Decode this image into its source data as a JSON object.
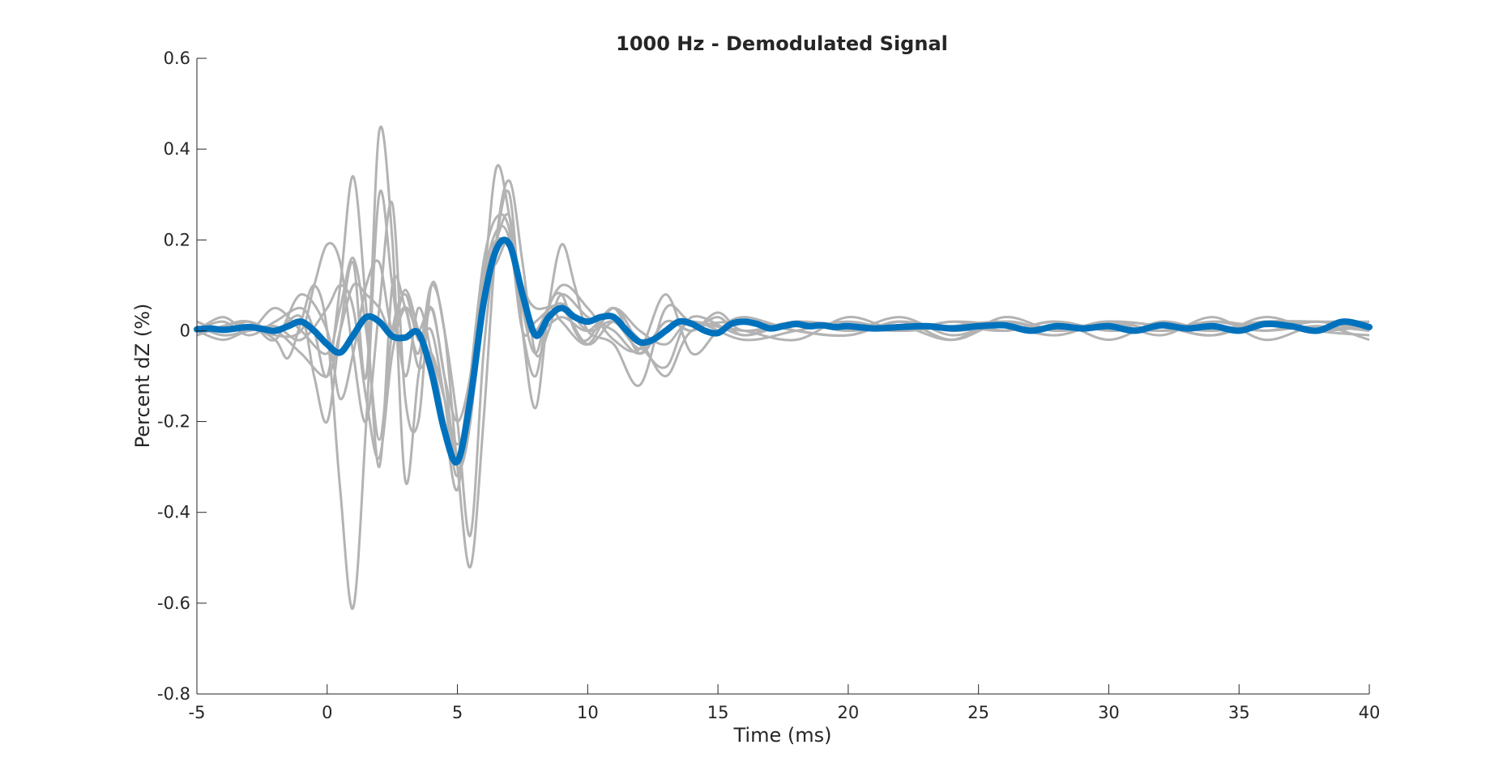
{
  "chart_data": {
    "type": "line",
    "title": "1000 Hz - Demodulated Signal",
    "xlabel": "Time (ms)",
    "ylabel": "Percent dZ (%)",
    "xlim": [
      -5,
      40
    ],
    "ylim": [
      -0.8,
      0.6
    ],
    "xticks": [
      -5,
      0,
      5,
      10,
      15,
      20,
      25,
      30,
      35,
      40
    ],
    "yticks": [
      -0.8,
      -0.6,
      -0.4,
      -0.2,
      0,
      0.2,
      0.4,
      0.6
    ],
    "xtick_labels": [
      "-5",
      "0",
      "5",
      "10",
      "15",
      "20",
      "25",
      "30",
      "35",
      "40"
    ],
    "ytick_labels": [
      "-0.8",
      "-0.6",
      "-0.4",
      "-0.2",
      "0",
      "0.2",
      "0.4",
      "0.6"
    ],
    "grid": false,
    "colors": {
      "mean": "#0072BD",
      "trials": "#b3b3b3",
      "axes": "#262626"
    },
    "mean_series": {
      "x": [
        -5,
        -4.5,
        -4,
        -3.5,
        -3,
        -2.5,
        -2,
        -1.5,
        -1,
        -0.5,
        0,
        0.5,
        1,
        1.5,
        2,
        2.5,
        3,
        3.5,
        4,
        4.5,
        5,
        5.5,
        6,
        6.5,
        7,
        7.5,
        8,
        8.5,
        9,
        9.5,
        10,
        10.5,
        11,
        11.5,
        12,
        12.5,
        13,
        13.5,
        14,
        14.5,
        15,
        15.5,
        16,
        16.5,
        17,
        17.5,
        18,
        18.5,
        19,
        19.5,
        20,
        21,
        22,
        23,
        24,
        25,
        26,
        27,
        28,
        29,
        30,
        31,
        32,
        33,
        34,
        35,
        36,
        37,
        38,
        39,
        40
      ],
      "y": [
        0.003,
        0.005,
        0.002,
        0.005,
        0.008,
        0.004,
        0.0,
        0.01,
        0.02,
        0.0,
        -0.03,
        -0.048,
        -0.01,
        0.03,
        0.02,
        -0.012,
        -0.015,
        -0.005,
        -0.09,
        -0.22,
        -0.288,
        -0.15,
        0.06,
        0.18,
        0.19,
        0.08,
        -0.01,
        0.03,
        0.05,
        0.03,
        0.02,
        0.03,
        0.03,
        0.0,
        -0.025,
        -0.02,
        0.0,
        0.02,
        0.015,
        0.0,
        -0.005,
        0.015,
        0.02,
        0.015,
        0.005,
        0.01,
        0.015,
        0.01,
        0.012,
        0.008,
        0.01,
        0.005,
        0.008,
        0.01,
        0.005,
        0.01,
        0.012,
        0.0,
        0.01,
        0.005,
        0.01,
        0.0,
        0.012,
        0.005,
        0.01,
        0.0,
        0.015,
        0.01,
        0.0,
        0.02,
        0.008
      ]
    },
    "trials": [
      {
        "x": [
          -5,
          -4,
          -3,
          -2,
          -1.5,
          -1,
          -0.5,
          0,
          0.5,
          1,
          1.5,
          2,
          2.5,
          3,
          3.5,
          4,
          4.5,
          5,
          5.5,
          6,
          6.5,
          7,
          7.5,
          8,
          8.5,
          9,
          9.5,
          10,
          11,
          12,
          13,
          14,
          15,
          16,
          18,
          20,
          22,
          24,
          26,
          28,
          30,
          32,
          34,
          36,
          38,
          40
        ],
        "y": [
          0.02,
          0.0,
          0.01,
          -0.02,
          -0.06,
          0.02,
          0.1,
          0.0,
          -0.35,
          -0.61,
          -0.2,
          0.3,
          0.1,
          -0.1,
          0.05,
          -0.05,
          -0.2,
          -0.35,
          -0.1,
          0.15,
          0.25,
          0.22,
          0.0,
          -0.1,
          0.05,
          0.08,
          0.0,
          -0.02,
          0.05,
          -0.05,
          0.02,
          0.0,
          0.03,
          -0.01,
          0.02,
          0.0,
          0.03,
          -0.01,
          0.02,
          0.0,
          0.02,
          0.01,
          -0.01,
          0.02,
          0.0,
          0.02
        ]
      },
      {
        "x": [
          -5,
          -4,
          -3,
          -2,
          -1,
          -0.5,
          0,
          0.5,
          1,
          1.5,
          2,
          2.5,
          3,
          3.5,
          4,
          4.5,
          5,
          5.5,
          6,
          6.5,
          7,
          7.5,
          8,
          8.5,
          9,
          10,
          11,
          12,
          13,
          14,
          15,
          16,
          18,
          20,
          22,
          24,
          26,
          28,
          30,
          32,
          34,
          36,
          38,
          40
        ],
        "y": [
          0.0,
          0.02,
          -0.01,
          0.02,
          0.05,
          0.0,
          -0.1,
          0.1,
          0.34,
          0.05,
          -0.3,
          0.1,
          0.05,
          -0.05,
          0.1,
          0.0,
          -0.3,
          -0.52,
          -0.2,
          0.2,
          0.33,
          0.15,
          -0.05,
          0.0,
          0.08,
          0.03,
          0.0,
          -0.05,
          0.02,
          0.0,
          0.04,
          0.0,
          0.02,
          0.01,
          0.0,
          0.02,
          0.01,
          -0.01,
          0.02,
          0.0,
          0.02,
          0.0,
          0.02,
          0.0
        ]
      },
      {
        "x": [
          -5,
          -4,
          -3,
          -2,
          -1,
          -0.5,
          0,
          0.5,
          1,
          1.5,
          2,
          2.5,
          3,
          3.5,
          4,
          4.5,
          5,
          5.5,
          6,
          6.5,
          7,
          7.5,
          8,
          8.5,
          9,
          10,
          11,
          12,
          13,
          14,
          16,
          18,
          20,
          22,
          24,
          26,
          28,
          30,
          32,
          34,
          36,
          38,
          40
        ],
        "y": [
          -0.01,
          0.01,
          0.02,
          0.0,
          0.03,
          -0.1,
          -0.2,
          0.0,
          0.15,
          -0.1,
          0.44,
          0.2,
          -0.33,
          -0.1,
          0.05,
          -0.1,
          -0.2,
          -0.1,
          0.1,
          0.36,
          0.25,
          0.05,
          -0.05,
          0.05,
          0.02,
          -0.03,
          0.05,
          -0.03,
          -0.08,
          0.03,
          -0.01,
          0.02,
          0.0,
          0.01,
          -0.02,
          0.03,
          0.0,
          0.02,
          -0.01,
          0.03,
          -0.02,
          0.01,
          -0.02
        ]
      },
      {
        "x": [
          -5,
          -4,
          -3,
          -2,
          -1,
          -0.5,
          0,
          0.5,
          1,
          1.5,
          2,
          2.5,
          3,
          3.5,
          4,
          4.5,
          5,
          5.5,
          6,
          6.5,
          7,
          7.5,
          8,
          8.5,
          9,
          9.5,
          10,
          11,
          12,
          13,
          14,
          16,
          18,
          20,
          22,
          24,
          26,
          28,
          30,
          32,
          34,
          36,
          38,
          40
        ],
        "y": [
          0.02,
          0.0,
          0.02,
          -0.01,
          0.0,
          0.1,
          0.19,
          0.15,
          -0.05,
          -0.2,
          0.05,
          0.28,
          -0.15,
          -0.2,
          0.1,
          0.0,
          -0.2,
          -0.45,
          -0.05,
          0.2,
          0.3,
          0.0,
          -0.17,
          0.05,
          0.19,
          0.1,
          0.0,
          -0.03,
          -0.12,
          0.05,
          0.02,
          0.0,
          -0.02,
          0.03,
          0.0,
          0.02,
          0.0,
          0.02,
          -0.02,
          0.02,
          0.0,
          0.02,
          0.02,
          0.02
        ]
      },
      {
        "x": [
          -5,
          -4,
          -3,
          -2,
          -1,
          0,
          0.5,
          1,
          1.5,
          2,
          2.5,
          3,
          3.5,
          4,
          4.5,
          5,
          5.5,
          6,
          6.5,
          7,
          7.5,
          8,
          9,
          10,
          11,
          12,
          13,
          14,
          15,
          16,
          18,
          20,
          22,
          24,
          26,
          28,
          30,
          32,
          34,
          36,
          38,
          40
        ],
        "y": [
          0.0,
          0.03,
          0.0,
          0.05,
          0.0,
          -0.05,
          0.05,
          0.16,
          0.0,
          -0.24,
          0.0,
          0.08,
          -0.02,
          0.0,
          -0.15,
          -0.32,
          -0.1,
          0.1,
          0.2,
          0.25,
          0.05,
          0.0,
          0.1,
          0.05,
          -0.02,
          -0.04,
          0.08,
          -0.05,
          0.0,
          0.03,
          0.0,
          -0.01,
          0.02,
          -0.02,
          0.02,
          0.0,
          0.02,
          0.01,
          -0.01,
          0.03,
          0.0,
          -0.01
        ]
      },
      {
        "x": [
          -5,
          -4,
          -3,
          -2,
          -1,
          0,
          0.5,
          1,
          1.5,
          2,
          2.5,
          3,
          3.5,
          4,
          4.5,
          5,
          5.5,
          6,
          6.5,
          7,
          7.5,
          8,
          9,
          10,
          11,
          12,
          13,
          14,
          16,
          18,
          20,
          22,
          24,
          26,
          28,
          30,
          32,
          34,
          36,
          38,
          40
        ],
        "y": [
          0.01,
          -0.01,
          0.0,
          0.01,
          -0.02,
          0.05,
          0.1,
          0.05,
          -0.15,
          -0.28,
          -0.05,
          0.05,
          0.0,
          0.05,
          -0.1,
          -0.3,
          -0.2,
          0.1,
          0.22,
          0.2,
          0.0,
          0.02,
          0.06,
          0.0,
          0.02,
          -0.04,
          0.0,
          0.02,
          0.0,
          0.01,
          0.01,
          0.0,
          0.01,
          0.02,
          0.0,
          0.01,
          0.0,
          0.02,
          0.01,
          0.02,
          0.0
        ]
      },
      {
        "x": [
          -5,
          -4,
          -3,
          -2,
          -1,
          0,
          0.5,
          1,
          1.5,
          2,
          2.5,
          3,
          3.5,
          4,
          4.5,
          5,
          5.5,
          6,
          6.5,
          7,
          7.5,
          8,
          9,
          10,
          11,
          12,
          13,
          14,
          16,
          18,
          20,
          22,
          24,
          26,
          28,
          30,
          32,
          34,
          36,
          38,
          40
        ],
        "y": [
          -0.01,
          0.01,
          0.02,
          -0.02,
          0.08,
          0.0,
          -0.15,
          -0.05,
          0.1,
          0.15,
          0.0,
          0.05,
          -0.08,
          -0.05,
          -0.15,
          -0.25,
          -0.15,
          0.12,
          0.2,
          0.18,
          0.1,
          0.0,
          0.03,
          0.0,
          0.05,
          0.0,
          -0.03,
          0.02,
          -0.02,
          0.0,
          0.02,
          0.0,
          0.01,
          0.0,
          0.02,
          0.0,
          0.01,
          0.0,
          0.02,
          0.0,
          0.01
        ]
      },
      {
        "x": [
          -5,
          -4,
          -3,
          -2,
          -1,
          0,
          0.5,
          1,
          1.5,
          2,
          2.5,
          3,
          3.5,
          4,
          4.5,
          5,
          5.5,
          6,
          6.5,
          7,
          7.5,
          8,
          9,
          10,
          11,
          12,
          13,
          14,
          16,
          18,
          20,
          22,
          24,
          26,
          28,
          30,
          32,
          34,
          36,
          38,
          40
        ],
        "y": [
          0.0,
          -0.02,
          0.0,
          0.0,
          -0.05,
          -0.1,
          0.0,
          0.1,
          0.08,
          0.05,
          0.0,
          0.09,
          0.0,
          -0.1,
          -0.2,
          -0.28,
          -0.1,
          0.1,
          0.15,
          0.2,
          0.1,
          0.05,
          0.05,
          -0.03,
          0.02,
          -0.02,
          -0.1,
          0.0,
          0.02,
          0.0,
          -0.01,
          0.02,
          0.0,
          0.01,
          -0.01,
          0.02,
          0.0,
          0.01,
          0.0,
          0.01,
          0.0
        ]
      }
    ]
  }
}
